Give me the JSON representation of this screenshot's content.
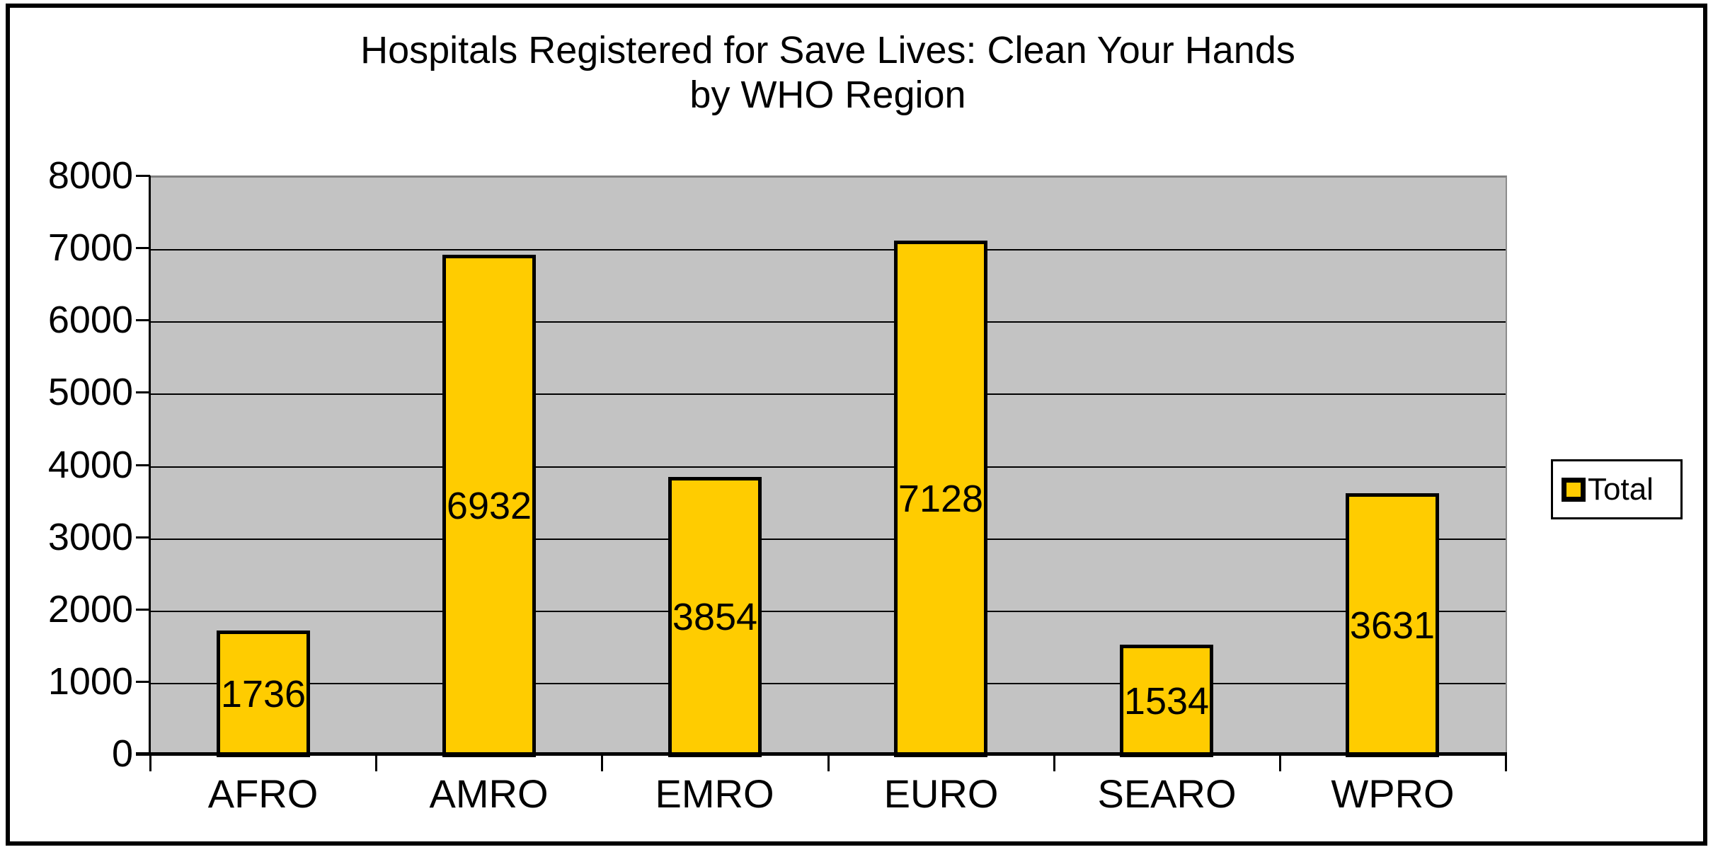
{
  "title": {
    "line1": "Hospitals Registered for Save Lives: Clean Your Hands",
    "line2": "by WHO Region"
  },
  "legend": {
    "label": "Total"
  },
  "colors": {
    "bar_fill": "#FFCC00",
    "bar_border": "#000000",
    "plot_background": "#C3C3C3",
    "gridline": "#000000",
    "plot_top_border": "#808080",
    "axis": "#000000",
    "text": "#000000",
    "legend_background": "#FFFFFF",
    "outer_border": "#000000"
  },
  "chart_data": {
    "type": "bar",
    "title": "Hospitals Registered for Save Lives: Clean Your Hands by WHO Region",
    "categories": [
      "AFRO",
      "AMRO",
      "EMRO",
      "EURO",
      "SEARO",
      "WPRO"
    ],
    "series": [
      {
        "name": "Total",
        "values": [
          1736,
          6932,
          3854,
          7128,
          1534,
          3631
        ]
      }
    ],
    "xlabel": "",
    "ylabel": "",
    "ylim": [
      0,
      8000
    ],
    "ytick_interval": 1000,
    "yticks": [
      0,
      1000,
      2000,
      3000,
      4000,
      5000,
      6000,
      7000,
      8000
    ],
    "grid": true,
    "gridlines": "horizontal",
    "data_labels": "centered-inside-bars",
    "legend_position": "right"
  }
}
